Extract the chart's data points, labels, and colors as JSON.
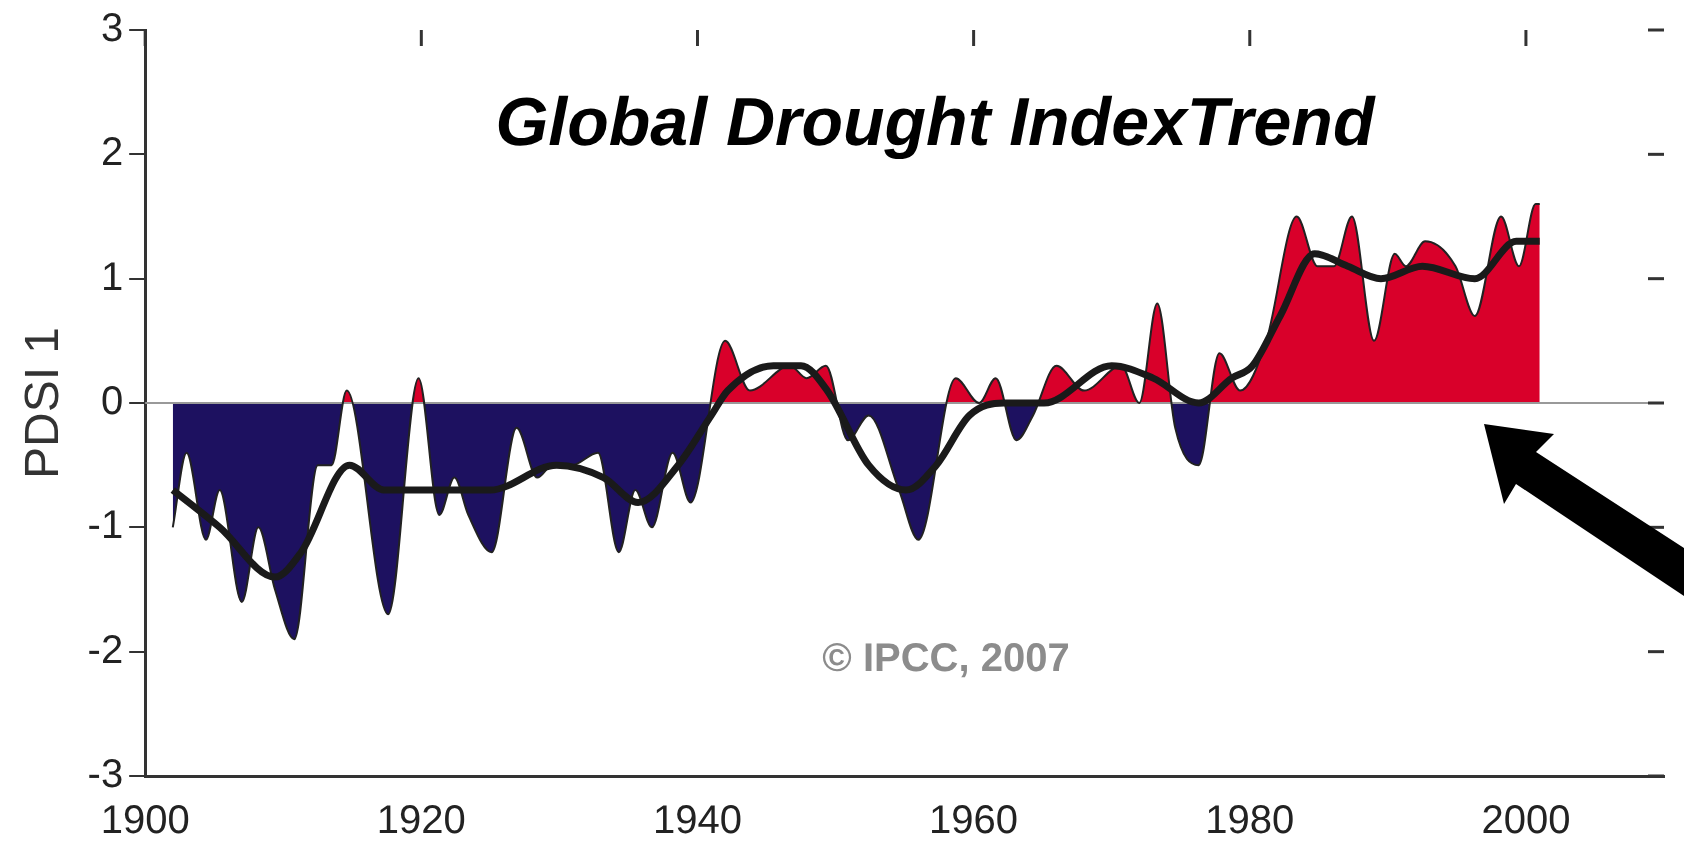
{
  "chart_data": {
    "type": "area",
    "title": "Global Drought IndexTrend",
    "ylabel": "PDSI 1",
    "annotations": [
      "© IPCC, 2007"
    ],
    "xlim": [
      1900,
      2010
    ],
    "xticks": [
      1900,
      1920,
      1940,
      1960,
      1980,
      2000
    ],
    "ylim": [
      -3,
      3
    ],
    "yticks": [
      -3,
      -2,
      -1,
      0,
      1,
      2,
      3
    ],
    "ref_lines": [
      {
        "axis": "y",
        "value": 0,
        "color": "#999999"
      }
    ],
    "series": [
      {
        "type": "area",
        "x": [
          1902,
          1903,
          1904.4,
          1905.4,
          1907,
          1908.2,
          1909.4,
          1910.8,
          1912.5,
          1913.5,
          1914.6,
          1917.6,
          1919.8,
          1921.3,
          1922.4,
          1923.4,
          1925.1,
          1926.9,
          1928.4,
          1929.5,
          1930.9,
          1932.8,
          1934.3,
          1935.5,
          1936.7,
          1938.2,
          1939.5,
          1942,
          1943.8,
          1946.7,
          1947.9,
          1949.3,
          1950.9,
          1952.4,
          1954.6,
          1956,
          1958.7,
          1960.4,
          1961.6,
          1963.1,
          1964.3,
          1966,
          1968,
          1970.7,
          1972,
          1973.3,
          1974.6,
          1976.3,
          1977.8,
          1979.3,
          1981.2,
          1983.4,
          1984.9,
          1986.1,
          1987.4,
          1989,
          1990.5,
          1991.3,
          1992.7,
          1994.9,
          1996.3,
          1998.2,
          1999.5,
          2000.7,
          2001
        ],
        "values": [
          -1.0,
          -0.4,
          -1.1,
          -0.7,
          -1.6,
          -1.0,
          -1.5,
          -1.9,
          -0.5,
          -0.5,
          0.1,
          -1.7,
          0.2,
          -0.9,
          -0.6,
          -0.9,
          -1.2,
          -0.2,
          -0.6,
          -0.5,
          -0.5,
          -0.4,
          -1.2,
          -0.7,
          -1.0,
          -0.4,
          -0.8,
          0.5,
          0.1,
          0.3,
          0.2,
          0.3,
          -0.3,
          -0.1,
          -0.7,
          -1.1,
          0.2,
          0.0,
          0.2,
          -0.3,
          -0.1,
          0.3,
          0.1,
          0.3,
          0.0,
          0.8,
          -0.2,
          -0.5,
          0.4,
          0.1,
          0.5,
          1.5,
          1.1,
          1.1,
          1.5,
          0.5,
          1.2,
          1.1,
          1.3,
          1.1,
          0.7,
          1.5,
          1.1,
          1.6,
          1.6
        ],
        "colors": [
          "#1d1160",
          "#1d1160",
          "#1d1160",
          "#1d1160",
          "#1d1160",
          "#1d1160",
          "#1d1160",
          "#1d1160",
          "#1d1160",
          "#1d1160",
          "#d9002a",
          "#1d1160",
          "#d9002a",
          "#1d1160",
          "#1d1160",
          "#1d1160",
          "#1d1160",
          "#1d1160",
          "#1d1160",
          "#1d1160",
          "#1d1160",
          "#1d1160",
          "#1d1160",
          "#1d1160",
          "#1d1160",
          "#1d1160",
          "#1d1160",
          "#d9002a",
          "#d9002a",
          "#d9002a",
          "#d9002a",
          "#d9002a",
          "#1d1160",
          "#1d1160",
          "#1d1160",
          "#1d1160",
          "#d9002a",
          "#d9002a",
          "#d9002a",
          "#1d1160",
          "#1d1160",
          "#d9002a",
          "#d9002a",
          "#d9002a",
          "#d9002a",
          "#d9002a",
          "#1d1160",
          "#1d1160",
          "#d9002a",
          "#d9002a",
          "#d9002a",
          "#d9002a",
          "#d9002a",
          "#d9002a",
          "#d9002a",
          "#d9002a",
          "#d9002a",
          "#d9002a",
          "#d9002a",
          "#d9002a",
          "#d9002a",
          "#d9002a",
          "#d9002a",
          "#d9002a",
          "#d9002a"
        ]
      },
      {
        "type": "line",
        "color": "#1a1a1a",
        "x": [
          1902,
          1905.4,
          1909.4,
          1911.3,
          1914.8,
          1917.3,
          1921,
          1925,
          1929.8,
          1933.2,
          1935.7,
          1938.6,
          1941,
          1942.2,
          1945.5,
          1947.5,
          1949.4,
          1952.4,
          1955.1,
          1957.3,
          1959.7,
          1962.2,
          1965.1,
          1970,
          1973,
          1976.3,
          1978.7,
          1980.2,
          1982.2,
          1984.7,
          1987.1,
          1989.5,
          1992.5,
          1996.3,
          1999.3,
          2001
        ],
        "values": [
          -0.7,
          -1.0,
          -1.4,
          -1.2,
          -0.5,
          -0.7,
          -0.7,
          -0.7,
          -0.5,
          -0.6,
          -0.8,
          -0.5,
          -0.1,
          0.1,
          0.3,
          0.3,
          0.1,
          -0.5,
          -0.7,
          -0.5,
          -0.1,
          0.0,
          0.0,
          0.3,
          0.2,
          0.0,
          0.2,
          0.3,
          0.7,
          1.2,
          1.1,
          1.0,
          1.1,
          1.0,
          1.3,
          1.3
        ]
      }
    ]
  }
}
